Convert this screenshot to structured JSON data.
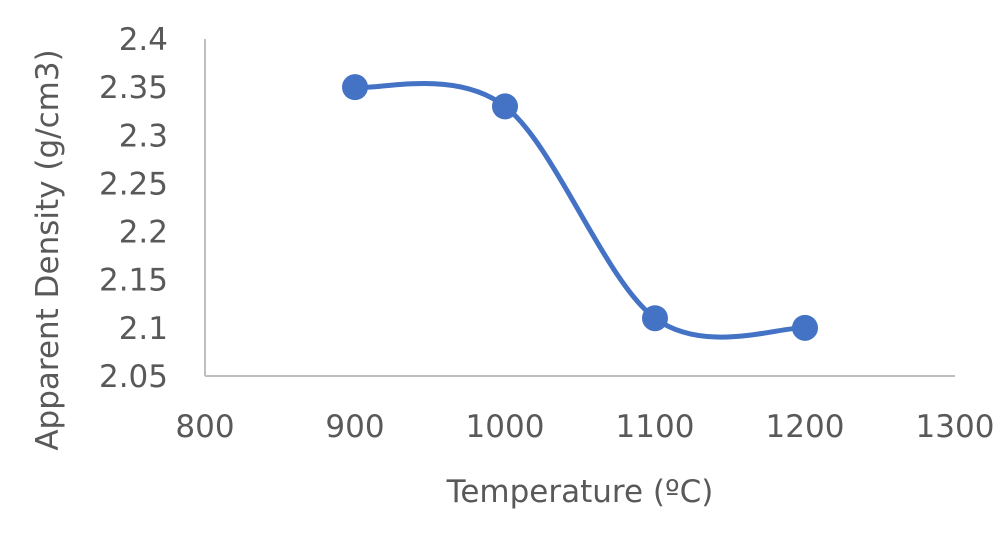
{
  "chart_data": {
    "type": "line",
    "smooth": true,
    "title": "",
    "xlabel": "Temperature (ºC)",
    "ylabel": "Apparent Density (g/cm3)",
    "xlim": [
      800,
      1300
    ],
    "ylim": [
      2.05,
      2.4
    ],
    "xticks": [
      "800",
      "900",
      "1000",
      "1100",
      "1200",
      "1300"
    ],
    "yticks": [
      "2.05",
      "2.1",
      "2.15",
      "2.2",
      "2.25",
      "2.3",
      "2.35",
      "2.4"
    ],
    "grid": false,
    "legend": "none",
    "series": [
      {
        "x": [
          900,
          1000,
          1100,
          1200
        ],
        "y": [
          2.35,
          2.33,
          2.11,
          2.1
        ]
      }
    ],
    "colors": {
      "series": "#4472c4",
      "axis": "#bfbfbf",
      "text": "#595959"
    }
  }
}
